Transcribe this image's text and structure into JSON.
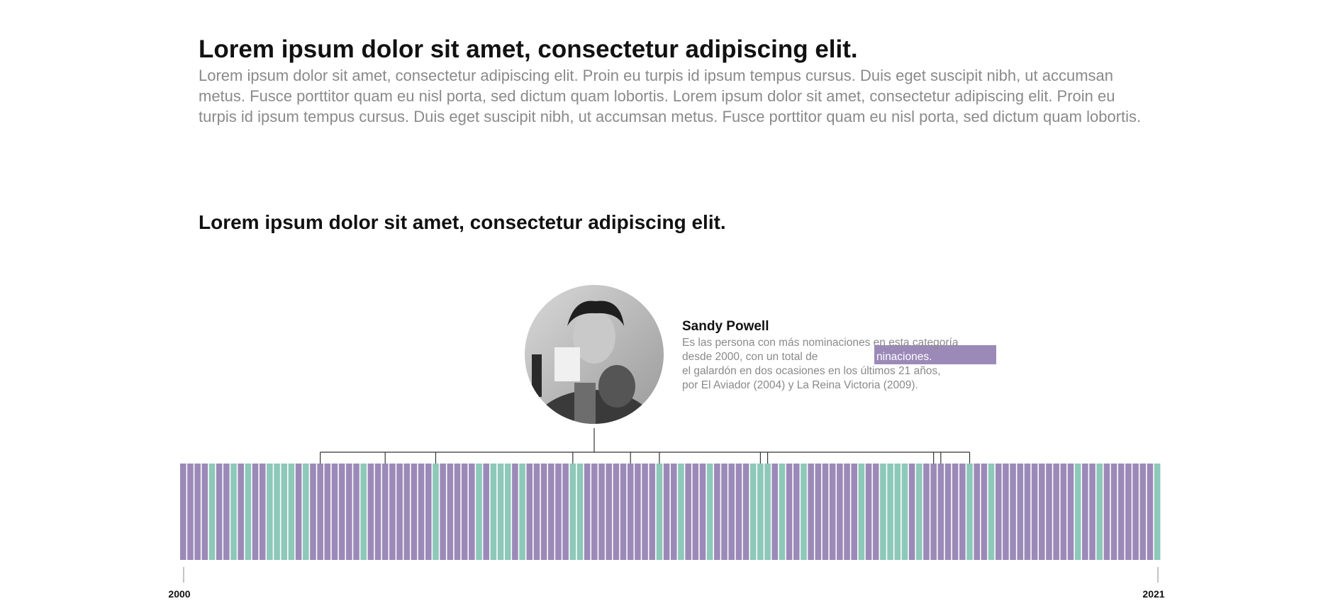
{
  "intro": {
    "title": "Lorem ipsum dolor sit amet, consectetur adipiscing elit.",
    "body": "Lorem ipsum dolor sit amet, consectetur adipiscing elit. Proin eu turpis id ipsum tempus cursus. Duis eget suscipit nibh, ut accumsan metus. Fusce porttitor quam eu nisl porta, sed dictum quam lobortis. Lorem ipsum dolor sit amet, consectetur adipiscing elit. Proin eu turpis id ipsum tempus cursus. Duis eget suscipit nibh, ut accumsan metus. Fusce porttitor quam eu nisl porta, sed dictum quam lobortis."
  },
  "section": {
    "title": "Lorem ipsum dolor sit amet, consectetur adipiscing elit."
  },
  "highlight": {
    "name": "Sandy Powell",
    "lines": [
      "Es las persona con más nominaciones en esta categoría",
      "desde 2000, con un total de",
      "el galardón en dos ocasiones en los últimos 21 años,",
      "por El Aviador (2004) y La Reina Victoria (2009)."
    ],
    "emphasis": "ninaciones.",
    "photo_icon": "portrait-photo"
  },
  "colors": {
    "nominee": "#9b8ab8",
    "winner": "#8dc8b8",
    "highlight_box": "#9b8ab8",
    "connector": "#333333",
    "text_dark": "#111111",
    "text_muted": "#8a8a8a"
  },
  "chart_data": {
    "type": "bar",
    "axis": {
      "start_label": "2000",
      "end_label": "2021"
    },
    "legend": "none",
    "grid": false,
    "series": [
      {
        "key": "nominee"
      },
      {
        "key": "winner"
      }
    ],
    "bars": [
      "n",
      "n",
      "n",
      "n",
      "w",
      "n",
      "n",
      "w",
      "n",
      "w",
      "n",
      "n",
      "w",
      "w",
      "w",
      "w",
      "n",
      "w",
      "n",
      "n",
      "n",
      "n",
      "n",
      "n",
      "n",
      "w",
      "n",
      "n",
      "n",
      "n",
      "n",
      "n",
      "n",
      "n",
      "n",
      "w",
      "n",
      "n",
      "n",
      "n",
      "n",
      "w",
      "n",
      "w",
      "w",
      "w",
      "n",
      "w",
      "n",
      "n",
      "n",
      "n",
      "n",
      "n",
      "w",
      "w",
      "n",
      "n",
      "n",
      "n",
      "n",
      "n",
      "n",
      "n",
      "n",
      "n",
      "w",
      "n",
      "n",
      "w",
      "n",
      "n",
      "n",
      "w",
      "n",
      "n",
      "n",
      "n",
      "n",
      "w",
      "w",
      "w",
      "n",
      "w",
      "n",
      "n",
      "w",
      "n",
      "n",
      "n",
      "n",
      "n",
      "n",
      "n",
      "w",
      "n",
      "n",
      "w",
      "w",
      "w",
      "w",
      "n",
      "w",
      "n",
      "n",
      "n",
      "n",
      "n",
      "n",
      "w",
      "n",
      "n",
      "w",
      "n",
      "n",
      "n",
      "n",
      "n",
      "n",
      "n",
      "n",
      "n",
      "n",
      "n",
      "w",
      "n",
      "n",
      "w",
      "n",
      "n",
      "n",
      "n",
      "n",
      "n",
      "n",
      "w"
    ],
    "highlight_bars": [
      19,
      28,
      35,
      54,
      62,
      66,
      80,
      81,
      104,
      105,
      109
    ]
  }
}
